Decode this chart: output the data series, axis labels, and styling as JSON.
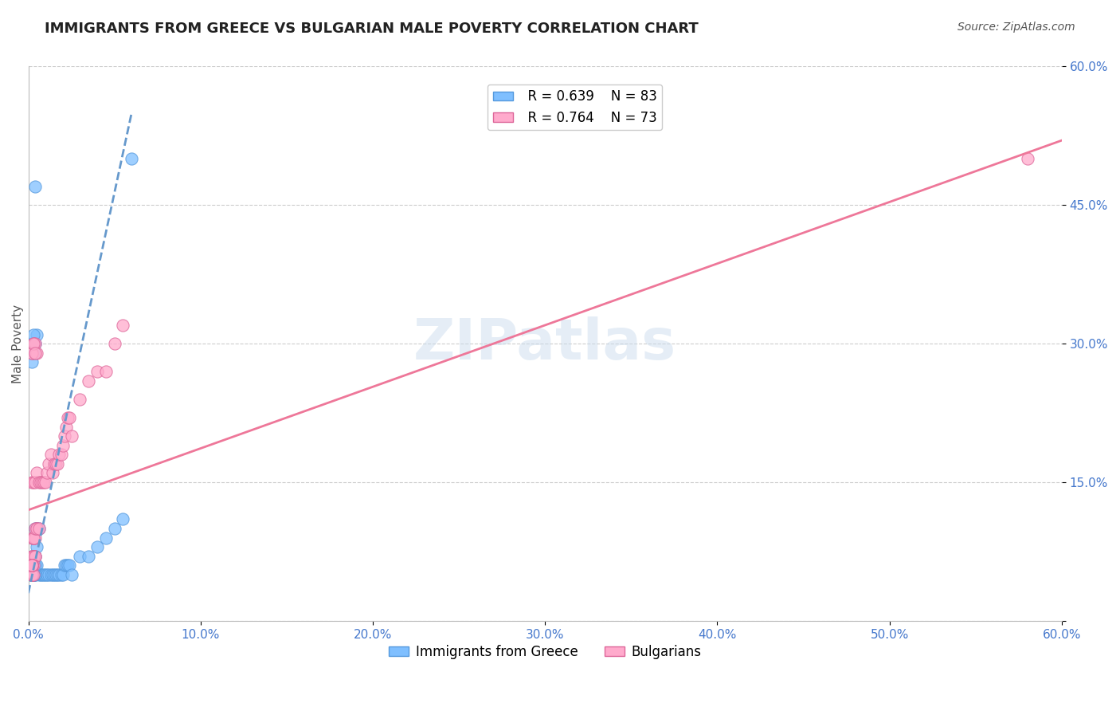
{
  "title": "IMMIGRANTS FROM GREECE VS BULGARIAN MALE POVERTY CORRELATION CHART",
  "source": "Source: ZipAtlas.com",
  "xlabel": "",
  "ylabel": "Male Poverty",
  "series": [
    {
      "name": "Immigrants from Greece",
      "R": 0.639,
      "N": 83,
      "color": "#7fbfff",
      "edge_color": "#5599dd",
      "line_color": "#6699cc",
      "line_style": "--",
      "x": [
        0.002,
        0.003,
        0.004,
        0.005,
        0.006,
        0.007,
        0.008,
        0.009,
        0.01,
        0.011,
        0.012,
        0.013,
        0.014,
        0.015,
        0.016,
        0.017,
        0.018,
        0.019,
        0.02,
        0.021,
        0.022,
        0.023,
        0.024,
        0.025,
        0.03,
        0.035,
        0.04,
        0.045,
        0.05,
        0.055,
        0.06,
        0.002,
        0.003,
        0.004,
        0.005,
        0.002,
        0.003,
        0.004,
        0.002,
        0.003,
        0.004,
        0.005,
        0.003,
        0.004,
        0.005,
        0.006,
        0.002,
        0.003,
        0.004,
        0.002,
        0.003,
        0.004,
        0.002,
        0.003,
        0.002,
        0.002,
        0.002,
        0.002,
        0.003,
        0.002,
        0.002,
        0.002,
        0.002,
        0.002,
        0.002,
        0.002,
        0.002,
        0.002,
        0.002,
        0.002,
        0.002,
        0.002,
        0.002,
        0.002,
        0.002,
        0.002,
        0.002,
        0.002,
        0.002,
        0.002,
        0.002,
        0.002,
        0.002
      ],
      "y": [
        0.05,
        0.05,
        0.05,
        0.06,
        0.05,
        0.05,
        0.05,
        0.05,
        0.05,
        0.05,
        0.05,
        0.05,
        0.05,
        0.05,
        0.05,
        0.05,
        0.05,
        0.05,
        0.05,
        0.06,
        0.06,
        0.06,
        0.06,
        0.05,
        0.07,
        0.07,
        0.08,
        0.09,
        0.1,
        0.11,
        0.5,
        0.28,
        0.29,
        0.3,
        0.31,
        0.3,
        0.31,
        0.47,
        0.07,
        0.07,
        0.07,
        0.08,
        0.09,
        0.1,
        0.1,
        0.1,
        0.05,
        0.05,
        0.05,
        0.06,
        0.06,
        0.06,
        0.05,
        0.05,
        0.05,
        0.05,
        0.05,
        0.05,
        0.05,
        0.05,
        0.05,
        0.05,
        0.05,
        0.05,
        0.05,
        0.05,
        0.05,
        0.05,
        0.05,
        0.05,
        0.05,
        0.05,
        0.05,
        0.05,
        0.05,
        0.05,
        0.05,
        0.05,
        0.05,
        0.05,
        0.05,
        0.05,
        0.05
      ],
      "trend_x": [
        0.0,
        0.06
      ],
      "trend_y": [
        0.03,
        0.55
      ]
    },
    {
      "name": "Bulgarians",
      "R": 0.764,
      "N": 73,
      "color": "#ffaacc",
      "edge_color": "#dd6699",
      "line_color": "#ee7799",
      "line_style": "-",
      "x": [
        0.002,
        0.003,
        0.004,
        0.005,
        0.006,
        0.007,
        0.008,
        0.009,
        0.01,
        0.011,
        0.012,
        0.013,
        0.014,
        0.015,
        0.016,
        0.017,
        0.018,
        0.019,
        0.02,
        0.021,
        0.022,
        0.023,
        0.024,
        0.025,
        0.03,
        0.035,
        0.04,
        0.045,
        0.05,
        0.055,
        0.58,
        0.002,
        0.003,
        0.004,
        0.005,
        0.002,
        0.003,
        0.004,
        0.002,
        0.003,
        0.004,
        0.005,
        0.003,
        0.004,
        0.005,
        0.006,
        0.002,
        0.003,
        0.004,
        0.002,
        0.003,
        0.004,
        0.002,
        0.003,
        0.002,
        0.002,
        0.002,
        0.002,
        0.003,
        0.002,
        0.002,
        0.002,
        0.002,
        0.002,
        0.002,
        0.002,
        0.002,
        0.002,
        0.002,
        0.002,
        0.002,
        0.002,
        0.002
      ],
      "y": [
        0.15,
        0.15,
        0.15,
        0.16,
        0.15,
        0.15,
        0.15,
        0.15,
        0.15,
        0.16,
        0.17,
        0.18,
        0.16,
        0.17,
        0.17,
        0.17,
        0.18,
        0.18,
        0.19,
        0.2,
        0.21,
        0.22,
        0.22,
        0.2,
        0.24,
        0.26,
        0.27,
        0.27,
        0.3,
        0.32,
        0.5,
        0.29,
        0.3,
        0.3,
        0.29,
        0.29,
        0.3,
        0.29,
        0.09,
        0.09,
        0.09,
        0.1,
        0.09,
        0.1,
        0.1,
        0.1,
        0.07,
        0.07,
        0.07,
        0.07,
        0.07,
        0.07,
        0.06,
        0.06,
        0.05,
        0.05,
        0.05,
        0.05,
        0.05,
        0.06,
        0.06,
        0.06,
        0.06,
        0.06,
        0.06,
        0.06,
        0.06,
        0.06,
        0.06,
        0.06,
        0.06,
        0.06,
        0.06
      ],
      "trend_x": [
        0.0,
        0.6
      ],
      "trend_y": [
        0.12,
        0.52
      ]
    }
  ],
  "xlim": [
    0.0,
    0.6
  ],
  "ylim": [
    0.0,
    0.6
  ],
  "xticks": [
    0.0,
    0.1,
    0.2,
    0.3,
    0.4,
    0.5,
    0.6
  ],
  "xtick_labels": [
    "0.0%",
    "10.0%",
    "20.0%",
    "30.0%",
    "40.0%",
    "50.0%",
    "60.0%"
  ],
  "yticks": [
    0.0,
    0.15,
    0.3,
    0.45,
    0.6
  ],
  "ytick_labels": [
    "",
    "15.0%",
    "30.0%",
    "45.0%",
    "60.0%"
  ],
  "grid_color": "#cccccc",
  "background_color": "#ffffff",
  "watermark": "ZIPatlas",
  "watermark_color": "#ccddee",
  "title_fontsize": 13,
  "axis_label_fontsize": 11,
  "tick_fontsize": 11,
  "legend_fontsize": 12,
  "source_fontsize": 10
}
